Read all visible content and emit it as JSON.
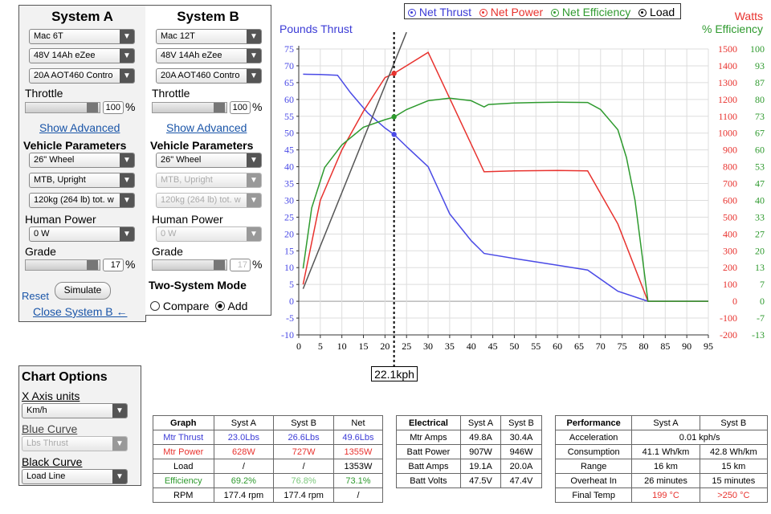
{
  "systemA": {
    "title": "System A",
    "motor": "Mac 6T",
    "battery": "48V 14Ah eZee",
    "controller": "20A AOT460 Contro",
    "throttle_label": "Throttle",
    "throttle_value": "100",
    "throttle_level": 1.0,
    "pct": "%",
    "show_advanced": "Show Advanced",
    "vehicle_params_label": "Vehicle Parameters",
    "wheel": "26\"  Wheel",
    "posture": "MTB, Upright",
    "weight": "120kg (264 lb) tot. w",
    "human_power_label": "Human Power",
    "human_power": "0 W",
    "grade_label": "Grade",
    "grade_value": "17",
    "reset": "Reset",
    "simulate": "Simulate",
    "close_b": "Close System B ←"
  },
  "systemB": {
    "title": "System B",
    "motor": "Mac 12T",
    "battery": "48V 14Ah eZee",
    "controller": "20A AOT460 Contro",
    "throttle_label": "Throttle",
    "throttle_value": "100",
    "throttle_level": 1.0,
    "pct": "%",
    "show_advanced": "Show Advanced",
    "vehicle_params_label": "Vehicle Parameters",
    "wheel": "26\"  Wheel",
    "posture": "MTB, Upright",
    "weight": "120kg (264 lb) tot. w",
    "human_power_label": "Human Power",
    "human_power": "0 W",
    "grade_label": "Grade",
    "grade_value": "17",
    "two_system_label": "Two-System Mode",
    "compare": "Compare",
    "add": "Add",
    "selected_mode": "Add"
  },
  "chart_options": {
    "title": "Chart Options",
    "x_axis_label": "X Axis units",
    "x_axis_value": "Km/h",
    "blue_curve_label": "Blue Curve",
    "blue_curve_value": "Lbs Thrust",
    "black_curve_label": "Black Curve",
    "black_curve_value": "Load Line"
  },
  "legend": {
    "net_thrust": "Net Thrust",
    "net_power": "Net Power",
    "net_efficiency": "Net Efficiency",
    "load": "Load"
  },
  "colors": {
    "thrust": "#4a4ae6",
    "power": "#e8322e",
    "efficiency": "#2e9a2e",
    "load": "#555555"
  },
  "chart_data": {
    "type": "line",
    "xlim": [
      0,
      95
    ],
    "x_ticks": [
      "0",
      "5",
      "10",
      "15",
      "20",
      "25",
      "30",
      "35",
      "40",
      "45",
      "50",
      "55",
      "60",
      "65",
      "70",
      "75",
      "80",
      "85",
      "90",
      "95"
    ],
    "left_label": "Pounds Thrust",
    "left_ylim": [
      -10,
      75
    ],
    "left_ticks": [
      "-10",
      "-5",
      "0",
      "5",
      "10",
      "15",
      "20",
      "25",
      "30",
      "35",
      "40",
      "45",
      "50",
      "55",
      "60",
      "65",
      "70",
      "75"
    ],
    "right_label_1": "Watts",
    "right_label_2": "% Efficiency",
    "watts_ticks": [
      "-200",
      "-100",
      "0",
      "100",
      "200",
      "300",
      "400",
      "500",
      "600",
      "700",
      "800",
      "900",
      "1000",
      "1100",
      "1200",
      "1300",
      "1400",
      "1500"
    ],
    "eff_ticks": [
      "-13",
      "-7",
      "0",
      "7",
      "13",
      "20",
      "27",
      "33",
      "40",
      "47",
      "53",
      "60",
      "67",
      "73",
      "80",
      "87",
      "93",
      "100"
    ],
    "cursor_label": "22.1kph",
    "cursor_x": 22.1,
    "series": [
      {
        "name": "Net Thrust",
        "unit": "lbs",
        "points": [
          [
            1,
            67.5
          ],
          [
            5,
            67.4
          ],
          [
            9,
            67.2
          ],
          [
            12,
            62
          ],
          [
            16,
            56
          ],
          [
            20,
            51.5
          ],
          [
            22.1,
            49.6
          ],
          [
            25,
            46
          ],
          [
            30,
            40
          ],
          [
            35,
            26
          ],
          [
            40,
            18
          ],
          [
            43,
            14.2
          ],
          [
            50,
            12.7
          ],
          [
            60,
            10.7
          ],
          [
            67,
            9.3
          ],
          [
            74,
            3
          ],
          [
            81,
            0
          ],
          [
            95,
            0
          ]
        ]
      },
      {
        "name": "Net Power",
        "unit": "W",
        "points": [
          [
            1,
            100
          ],
          [
            5,
            600
          ],
          [
            10,
            900
          ],
          [
            15,
            1130
          ],
          [
            20,
            1330
          ],
          [
            22.1,
            1355
          ],
          [
            25,
            1400
          ],
          [
            30,
            1480
          ],
          [
            43,
            770
          ],
          [
            50,
            775
          ],
          [
            60,
            778
          ],
          [
            67,
            775
          ],
          [
            74,
            460
          ],
          [
            81,
            0
          ],
          [
            95,
            0
          ]
        ]
      },
      {
        "name": "Net Efficiency",
        "unit": "%",
        "points": [
          [
            1,
            13
          ],
          [
            3,
            37
          ],
          [
            6,
            53
          ],
          [
            10,
            62
          ],
          [
            15,
            69
          ],
          [
            20,
            72
          ],
          [
            22.1,
            73
          ],
          [
            25,
            76
          ],
          [
            30,
            79.5
          ],
          [
            35,
            80.5
          ],
          [
            40,
            79.5
          ],
          [
            43,
            77
          ],
          [
            44,
            78
          ],
          [
            50,
            78.6
          ],
          [
            55,
            78.8
          ],
          [
            60,
            78.9
          ],
          [
            67,
            78.8
          ],
          [
            70,
            76
          ],
          [
            74,
            68
          ],
          [
            76,
            57
          ],
          [
            78,
            40
          ],
          [
            79.5,
            20
          ],
          [
            81,
            0
          ],
          [
            95,
            0
          ]
        ]
      },
      {
        "name": "Load",
        "unit": "lbs",
        "points": [
          [
            1,
            3.7
          ],
          [
            25,
            80
          ]
        ]
      }
    ],
    "markers": [
      {
        "series": "Net Thrust",
        "x": 22.1,
        "y": 49.6
      },
      {
        "series": "Net Power",
        "x": 22.1,
        "y": 1355
      },
      {
        "series": "Net Efficiency",
        "x": 22.1,
        "y": 73.1
      }
    ]
  },
  "graph_table": {
    "headers": [
      "Graph",
      "Syst A",
      "Syst B",
      "Net"
    ],
    "rows": [
      {
        "label": "Mtr Thrust",
        "a": "23.0Lbs",
        "b": "26.6Lbs",
        "net": "49.6Lbs"
      },
      {
        "label": "Mtr Power",
        "a": "628W",
        "b": "727W",
        "net": "1355W"
      },
      {
        "label": "Load",
        "a": "/",
        "b": "/",
        "net": "1353W"
      },
      {
        "label": "Efficiency",
        "a": "69.2%",
        "b": "76.8%",
        "net": "73.1%"
      },
      {
        "label": "RPM",
        "a": "177.4 rpm",
        "b": "177.4 rpm",
        "net": "/"
      }
    ]
  },
  "electrical_table": {
    "headers": [
      "Electrical",
      "Syst A",
      "Syst B"
    ],
    "rows": [
      {
        "label": "Mtr Amps",
        "a": "49.8A",
        "b": "30.4A"
      },
      {
        "label": "Batt Power",
        "a": "907W",
        "b": "946W"
      },
      {
        "label": "Batt Amps",
        "a": "19.1A",
        "b": "20.0A"
      },
      {
        "label": "Batt Volts",
        "a": "47.5V",
        "b": "47.4V"
      }
    ]
  },
  "performance_table": {
    "headers": [
      "Performance",
      "Syst A",
      "Syst B"
    ],
    "acceleration_label": "Acceleration",
    "acceleration": "0.01 kph/s",
    "rows": [
      {
        "label": "Consumption",
        "a": "41.1 Wh/km",
        "b": "42.8 Wh/km"
      },
      {
        "label": "Range",
        "a": "16 km",
        "b": "15 km"
      },
      {
        "label": "Overheat In",
        "a": "26 minutes",
        "b": "15 minutes"
      },
      {
        "label": "Final Temp",
        "a": "199 °C",
        "b": ">250 °C"
      }
    ]
  }
}
